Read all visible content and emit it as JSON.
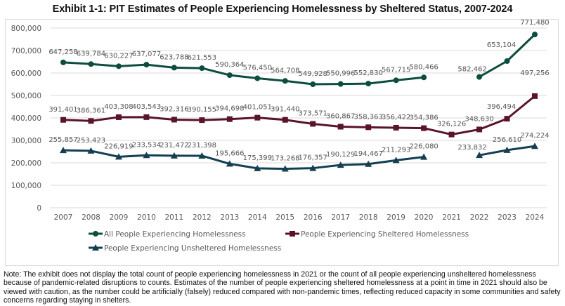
{
  "title": "Exhibit 1-1: PIT Estimates of People Experiencing Homelessness by Sheltered Status, 2007-2024",
  "note": "Note: The exhibit does not display the total count of people experiencing homelessness in 2021 or the count of all people experiencing unsheltered homelessness because of pandemic-related disruptions to counts. Estimates of the number of people experiencing sheltered homelessness at a point in time in 2021 should also be viewed with caution, as the number could be artificially (falsely) reduced compared with non-pandemic times, reflecting reduced capacity in some communities and safety concerns regarding staying in shelters.",
  "chart_data": {
    "type": "line",
    "title": "Exhibit 1-1: PIT Estimates of People Experiencing Homelessness by Sheltered Status, 2007-2024",
    "xlabel": "",
    "ylabel": "",
    "x": [
      "2007",
      "2008",
      "2009",
      "2010",
      "2011",
      "2012",
      "2013",
      "2014",
      "2015",
      "2016",
      "2017",
      "2018",
      "2019",
      "2020",
      "2021",
      "2022",
      "2023",
      "2024"
    ],
    "ylim": [
      0,
      800000
    ],
    "yticks": [
      0,
      100000,
      200000,
      300000,
      400000,
      500000,
      600000,
      700000,
      800000
    ],
    "ytick_labels": [
      "0",
      "100,000",
      "200,000",
      "300,000",
      "400,000",
      "500,000",
      "600,000",
      "700,000",
      "800,000"
    ],
    "grid": true,
    "legend_position": "bottom",
    "series": [
      {
        "name": "All People Experiencing Homelessness",
        "color": "#0d4d40",
        "marker": "circle",
        "values": [
          647258,
          639784,
          630227,
          637077,
          623788,
          621553,
          590364,
          576450,
          564708,
          549928,
          550996,
          552830,
          567715,
          580466,
          null,
          582462,
          653104,
          771480
        ],
        "labels": [
          "647,258",
          "639,784",
          "630,227",
          "637,077",
          "623,788",
          "621,553",
          "590,364",
          "576,450",
          "564,708",
          "549,928",
          "550,996",
          "552,830",
          "567,715",
          "580,466",
          "",
          "582,462",
          "653,104",
          "771,480"
        ]
      },
      {
        "name": "People Experiencing Sheltered Homelessness",
        "color": "#5a1428",
        "marker": "square",
        "values": [
          391401,
          386361,
          403308,
          403543,
          392316,
          390155,
          394698,
          401051,
          391440,
          373571,
          360867,
          358363,
          356422,
          354386,
          326126,
          348630,
          396494,
          497256
        ],
        "labels": [
          "391,401",
          "386,361",
          "403,308",
          "403,543",
          "392,316",
          "390,155",
          "394,698",
          "401,051",
          "391,440",
          "373,571",
          "360,867",
          "358,363",
          "356,422",
          "354,386",
          "326,126",
          "348,630",
          "396,494",
          "497,256"
        ]
      },
      {
        "name": "People Experiencing Unsheltered Homelessness",
        "color": "#123f52",
        "marker": "triangle",
        "values": [
          255857,
          253423,
          226919,
          233534,
          231472,
          231398,
          195666,
          175399,
          173268,
          176357,
          190129,
          194467,
          211293,
          226080,
          null,
          233832,
          256610,
          274224
        ],
        "labels": [
          "255,857",
          "253,423",
          "226,919",
          "233,534",
          "231,472",
          "231,398",
          "195,666",
          "175,399",
          "173,268",
          "176,357",
          "190,129",
          "194,467",
          "211,293",
          "226,080",
          "",
          "233,832",
          "256,610",
          "274,224"
        ]
      }
    ]
  }
}
